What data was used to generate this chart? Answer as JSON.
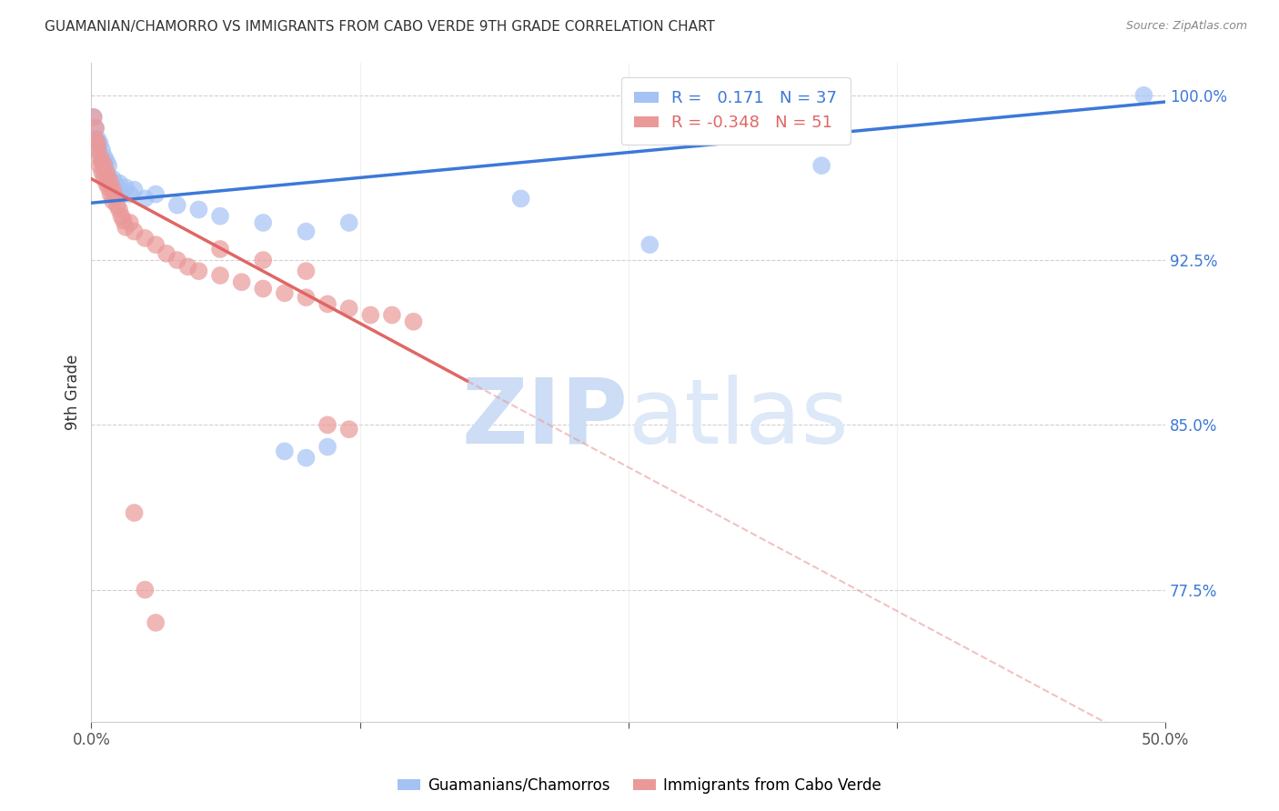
{
  "title": "GUAMANIAN/CHAMORRO VS IMMIGRANTS FROM CABO VERDE 9TH GRADE CORRELATION CHART",
  "source": "Source: ZipAtlas.com",
  "ylabel": "9th Grade",
  "xlim": [
    0.0,
    0.5
  ],
  "ylim": [
    0.715,
    1.015
  ],
  "ytick_labels_right": [
    "100.0%",
    "92.5%",
    "85.0%",
    "77.5%"
  ],
  "ytick_positions_right": [
    1.0,
    0.925,
    0.85,
    0.775
  ],
  "blue_color": "#a4c2f4",
  "pink_color": "#ea9999",
  "blue_line_color": "#3c78d8",
  "pink_line_color": "#e06666",
  "blue_scatter": [
    [
      0.001,
      0.99
    ],
    [
      0.002,
      0.985
    ],
    [
      0.003,
      0.98
    ],
    [
      0.003,
      0.975
    ],
    [
      0.004,
      0.978
    ],
    [
      0.005,
      0.975
    ],
    [
      0.005,
      0.97
    ],
    [
      0.006,
      0.972
    ],
    [
      0.006,
      0.968
    ],
    [
      0.007,
      0.97
    ],
    [
      0.007,
      0.965
    ],
    [
      0.008,
      0.968
    ],
    [
      0.008,
      0.963
    ],
    [
      0.009,
      0.96
    ],
    [
      0.01,
      0.962
    ],
    [
      0.011,
      0.96
    ],
    [
      0.012,
      0.958
    ],
    [
      0.013,
      0.96
    ],
    [
      0.014,
      0.955
    ],
    [
      0.016,
      0.958
    ],
    [
      0.018,
      0.955
    ],
    [
      0.02,
      0.957
    ],
    [
      0.025,
      0.953
    ],
    [
      0.03,
      0.955
    ],
    [
      0.04,
      0.95
    ],
    [
      0.05,
      0.948
    ],
    [
      0.06,
      0.945
    ],
    [
      0.08,
      0.942
    ],
    [
      0.1,
      0.938
    ],
    [
      0.12,
      0.942
    ],
    [
      0.09,
      0.838
    ],
    [
      0.1,
      0.835
    ],
    [
      0.11,
      0.84
    ],
    [
      0.2,
      0.953
    ],
    [
      0.26,
      0.932
    ],
    [
      0.34,
      0.968
    ],
    [
      0.49,
      1.0
    ]
  ],
  "pink_scatter": [
    [
      0.001,
      0.99
    ],
    [
      0.002,
      0.985
    ],
    [
      0.002,
      0.98
    ],
    [
      0.003,
      0.978
    ],
    [
      0.003,
      0.975
    ],
    [
      0.004,
      0.972
    ],
    [
      0.004,
      0.968
    ],
    [
      0.005,
      0.97
    ],
    [
      0.005,
      0.965
    ],
    [
      0.006,
      0.968
    ],
    [
      0.006,
      0.963
    ],
    [
      0.007,
      0.965
    ],
    [
      0.007,
      0.96
    ],
    [
      0.008,
      0.962
    ],
    [
      0.008,
      0.958
    ],
    [
      0.009,
      0.96
    ],
    [
      0.009,
      0.955
    ],
    [
      0.01,
      0.957
    ],
    [
      0.01,
      0.952
    ],
    [
      0.011,
      0.954
    ],
    [
      0.012,
      0.95
    ],
    [
      0.013,
      0.948
    ],
    [
      0.014,
      0.945
    ],
    [
      0.015,
      0.943
    ],
    [
      0.016,
      0.94
    ],
    [
      0.018,
      0.942
    ],
    [
      0.02,
      0.938
    ],
    [
      0.025,
      0.935
    ],
    [
      0.03,
      0.932
    ],
    [
      0.035,
      0.928
    ],
    [
      0.04,
      0.925
    ],
    [
      0.045,
      0.922
    ],
    [
      0.05,
      0.92
    ],
    [
      0.06,
      0.918
    ],
    [
      0.07,
      0.915
    ],
    [
      0.08,
      0.912
    ],
    [
      0.09,
      0.91
    ],
    [
      0.1,
      0.908
    ],
    [
      0.11,
      0.905
    ],
    [
      0.12,
      0.903
    ],
    [
      0.13,
      0.9
    ],
    [
      0.14,
      0.9
    ],
    [
      0.15,
      0.897
    ],
    [
      0.06,
      0.93
    ],
    [
      0.08,
      0.925
    ],
    [
      0.1,
      0.92
    ],
    [
      0.11,
      0.85
    ],
    [
      0.12,
      0.848
    ],
    [
      0.02,
      0.81
    ],
    [
      0.025,
      0.775
    ],
    [
      0.03,
      0.76
    ]
  ],
  "blue_trendline": [
    [
      0.0,
      0.951
    ],
    [
      0.5,
      0.997
    ]
  ],
  "pink_trendline_solid": [
    [
      0.0,
      0.962
    ],
    [
      0.175,
      0.87
    ]
  ],
  "pink_trendline_dashed": [
    [
      0.175,
      0.87
    ],
    [
      0.5,
      0.7
    ]
  ]
}
